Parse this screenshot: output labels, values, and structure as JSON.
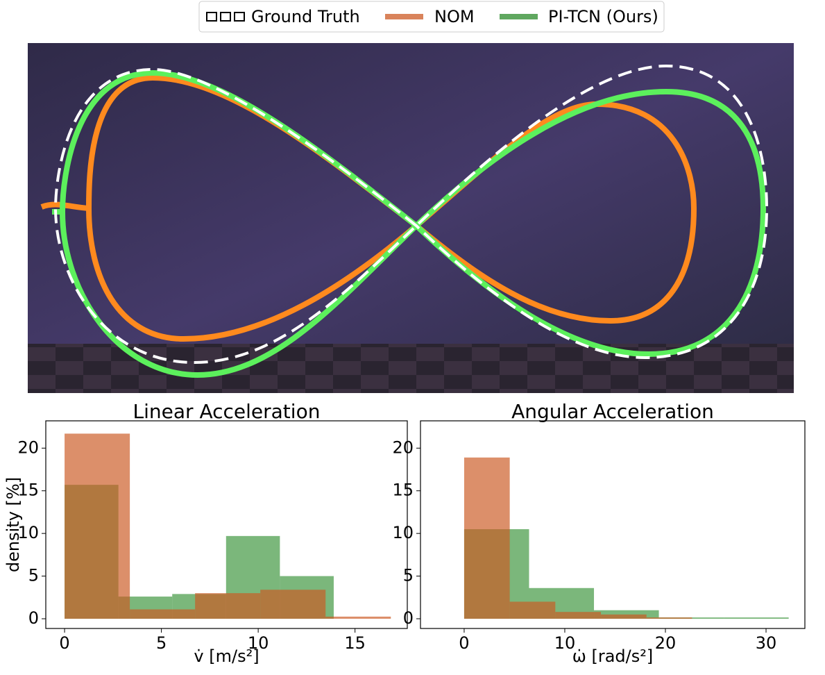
{
  "legend": {
    "ground_truth": "Ground Truth"
  },
  "chart_data": [
    {
      "type": "histogram",
      "title": "Linear Acceleration",
      "xlabel": "v̇ [m/s²]",
      "ylabel": "density [%]",
      "xlim": [
        -0.97,
        17.7
      ],
      "ylim": [
        -1.14,
        23.2
      ],
      "xticks": [
        0,
        5,
        10,
        15
      ],
      "yticks": [
        0,
        5,
        10,
        15,
        20
      ],
      "series": [
        {
          "name": "PI-TCN (Ours)",
          "color": "#2a8a2a",
          "bins": [
            0,
            2.78,
            5.56,
            8.34,
            11.12,
            13.9
          ],
          "values": [
            15.7,
            2.6,
            2.9,
            9.7,
            5.0
          ]
        },
        {
          "name": "NOM",
          "color": "#cc5a24",
          "bins": [
            0,
            3.37,
            6.74,
            10.11,
            13.48,
            16.85
          ],
          "values": [
            21.7,
            1.1,
            3.0,
            3.4,
            0.25
          ]
        }
      ]
    },
    {
      "type": "histogram",
      "title": "Angular Acceleration",
      "xlabel": "ω̇ [rad/s²]",
      "xlim": [
        -4.34,
        33.86
      ],
      "ylim": [
        -1.14,
        23.2
      ],
      "xticks": [
        0,
        10,
        20,
        30
      ],
      "yticks": [
        0,
        5,
        10,
        15,
        20
      ],
      "series": [
        {
          "color": "#2a8a2a",
          "bins": [
            0,
            6.45,
            12.9,
            19.35,
            25.8,
            32.25
          ],
          "values": [
            10.5,
            3.6,
            1.0,
            0.15,
            0.15
          ]
        },
        {
          "color": "#cc5a24",
          "bins": [
            0,
            4.53,
            9.06,
            13.59,
            18.12,
            22.65
          ],
          "values": [
            18.9,
            2.0,
            0.8,
            0.5,
            0.15
          ]
        }
      ]
    }
  ]
}
